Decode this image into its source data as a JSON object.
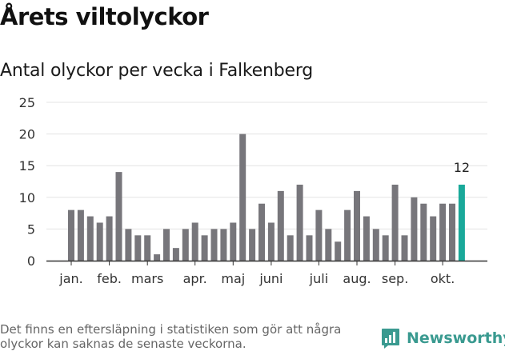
{
  "title": "Årets viltolyckor",
  "subtitle": "Antal olyckor per vecka i Falkenberg",
  "footnote": "Det finns en eftersläpning i statistiken som gör att några olyckor kan saknas de senaste veckorna.",
  "brand": "Newsworthy",
  "colors": {
    "bar": "#77767b",
    "highlight": "#1aa99a",
    "grid": "#e3e3e3",
    "axis": "#333333",
    "brand": "#3a9a90"
  },
  "icons": {
    "logo": "bar-chart-speech-icon"
  },
  "chart_data": {
    "type": "bar",
    "weeks": [
      1,
      2,
      3,
      4,
      5,
      6,
      7,
      8,
      9,
      10,
      11,
      12,
      13,
      14,
      15,
      16,
      17,
      18,
      19,
      20,
      21,
      22,
      23,
      24,
      25,
      26,
      27,
      28,
      29,
      30,
      31,
      32,
      33,
      34,
      35,
      36,
      37,
      38,
      39,
      40,
      41,
      42
    ],
    "values": [
      8,
      8,
      7,
      6,
      7,
      14,
      5,
      4,
      4,
      1,
      5,
      2,
      5,
      6,
      4,
      5,
      5,
      6,
      20,
      5,
      9,
      6,
      11,
      4,
      12,
      4,
      8,
      5,
      3,
      8,
      11,
      7,
      5,
      4,
      12,
      4,
      10,
      9,
      7,
      9,
      9,
      12
    ],
    "highlight_index": 41,
    "highlight_label": "12",
    "ylim": [
      0,
      25
    ],
    "yticks": [
      0,
      5,
      10,
      15,
      20,
      25
    ],
    "month_labels": [
      {
        "label": "jan.",
        "week": 1
      },
      {
        "label": "feb.",
        "week": 5
      },
      {
        "label": "mars",
        "week": 9
      },
      {
        "label": "apr.",
        "week": 14
      },
      {
        "label": "maj",
        "week": 18
      },
      {
        "label": "juni",
        "week": 22
      },
      {
        "label": "juli",
        "week": 27
      },
      {
        "label": "aug.",
        "week": 31
      },
      {
        "label": "sep.",
        "week": 35
      },
      {
        "label": "okt.",
        "week": 40
      }
    ],
    "grid": true,
    "xlabel": "",
    "ylabel": ""
  }
}
